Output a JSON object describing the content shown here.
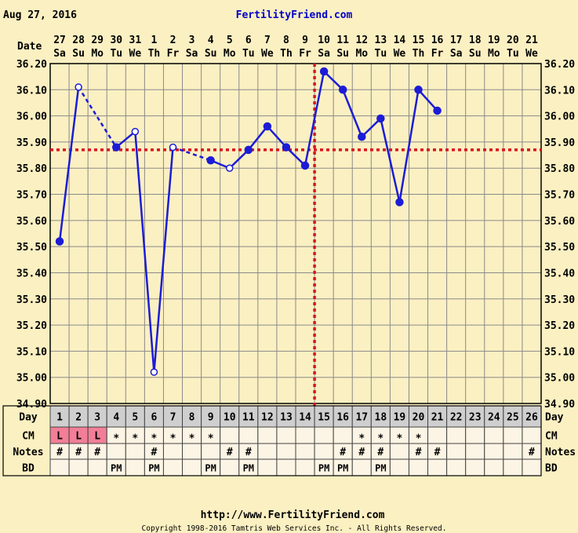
{
  "header": {
    "date": "Aug 27, 2016",
    "site": "FertilityFriend.com"
  },
  "footer": {
    "url": "http://www.FertilityFriend.com",
    "copyright": "Copyright 1998-2016 Tamtris Web Services Inc. - All Rights Reserved."
  },
  "row_labels": {
    "date": "Date",
    "day": "Day",
    "cm": "CM",
    "notes": "Notes",
    "bd": "BD"
  },
  "colors": {
    "background": "#fbf0c2",
    "line": "#1c1cd6",
    "coverline": "#d9141e",
    "grid": "#8a8a8a",
    "day_row": "#cfcfcf",
    "cm_L": "#f27e98"
  },
  "chart_data": {
    "type": "line",
    "title": "",
    "xlabel": "Date",
    "ylabel": "",
    "ylim": [
      34.9,
      36.2
    ],
    "y_ticks": [
      "34.90",
      "35.00",
      "35.10",
      "35.20",
      "35.30",
      "35.40",
      "35.50",
      "35.60",
      "35.70",
      "35.80",
      "35.90",
      "36.00",
      "36.10",
      "36.20"
    ],
    "dates": [
      "27",
      "28",
      "29",
      "30",
      "31",
      "1",
      "2",
      "3",
      "4",
      "5",
      "6",
      "7",
      "8",
      "9",
      "10",
      "11",
      "12",
      "13",
      "14",
      "15",
      "16",
      "17",
      "18",
      "19",
      "20",
      "21"
    ],
    "weekdays": [
      "Sa",
      "Su",
      "Mo",
      "Tu",
      "We",
      "Th",
      "Fr",
      "Sa",
      "Su",
      "Mo",
      "Tu",
      "We",
      "Th",
      "Fr",
      "Sa",
      "Su",
      "Mo",
      "Tu",
      "We",
      "Th",
      "Fr",
      "Sa",
      "Su",
      "Mo",
      "Tu",
      "We"
    ],
    "cycle_days": [
      "1",
      "2",
      "3",
      "4",
      "5",
      "6",
      "7",
      "8",
      "9",
      "10",
      "11",
      "12",
      "13",
      "14",
      "15",
      "16",
      "17",
      "18",
      "19",
      "20",
      "21",
      "22",
      "23",
      "24",
      "25",
      "26"
    ],
    "temperatures": [
      35.52,
      36.11,
      null,
      35.88,
      35.94,
      35.02,
      35.88,
      null,
      35.83,
      35.8,
      35.87,
      35.96,
      35.88,
      35.81,
      36.17,
      36.1,
      35.92,
      35.99,
      35.67,
      36.1,
      36.02,
      null,
      null,
      null,
      null,
      null
    ],
    "open_markers": [
      1,
      2,
      4,
      5,
      6,
      7,
      9
    ],
    "coverline": 35.87,
    "ovulation_day": 14,
    "cm": [
      "L",
      "L",
      "L",
      "*",
      "*",
      "*",
      "*",
      "*",
      "*",
      "",
      "",
      "",
      "",
      "",
      "",
      "",
      "*",
      "*",
      "*",
      "*",
      "",
      "",
      "",
      "",
      "",
      ""
    ],
    "notes": [
      "#",
      "#",
      "#",
      "",
      "",
      "#",
      "",
      "",
      "",
      "#",
      "#",
      "",
      "",
      "",
      "",
      "#",
      "#",
      "#",
      "",
      "#",
      "#",
      "",
      "",
      "",
      "",
      "#"
    ],
    "bd": [
      "",
      "",
      "",
      "PM",
      "",
      "PM",
      "",
      "",
      "PM",
      "",
      "PM",
      "",
      "",
      "",
      "PM",
      "PM",
      "",
      "PM",
      "",
      "",
      "",
      "",
      "",
      "",
      "",
      ""
    ],
    "grid": true
  }
}
